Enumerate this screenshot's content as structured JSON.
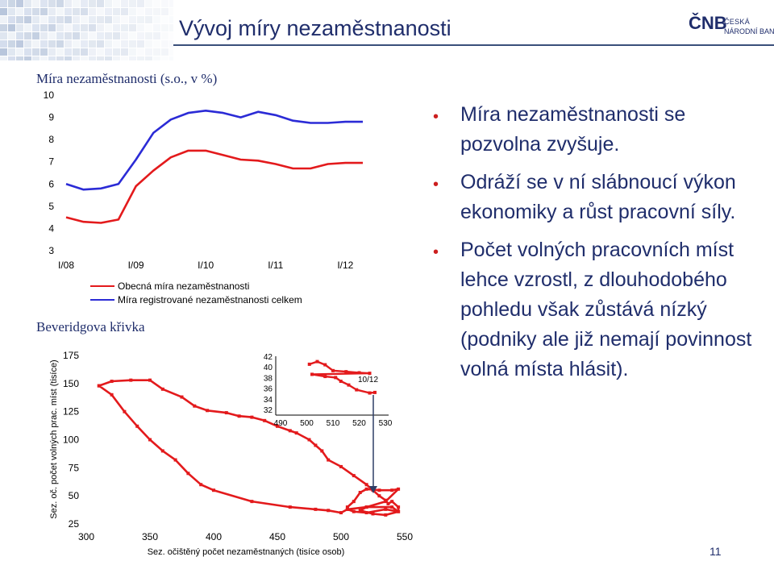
{
  "slide": {
    "title": "Vývoj míry nezaměstnanosti",
    "logo": {
      "mark": "ČNB",
      "line1": "ČESKÁ",
      "line2": "NÁRODNÍ BANKA"
    },
    "page_number": "11"
  },
  "section_titles": {
    "unemployment": "Míra nezaměstnanosti (s.o., v %)",
    "beveridge": "Beveridgova křivka"
  },
  "bullets": [
    "Míra nezaměstnanosti se pozvolna zvyšuje.",
    "Odráží se v ní slábnoucí výkon ekonomiky a růst pracovní síly.",
    "Počet volných pracovních míst lehce vzrostl, z dlouhodobého pohledu však zůstává nízký (podniky ale již nemají povinnost volná místa hlásit)."
  ],
  "colors": {
    "title": "#1f2d6b",
    "bullet_dot": "#cc1f1f",
    "series_general": "#e31a1c",
    "series_registered": "#2b2bd6",
    "beveridge": "#e31a1c",
    "arrow": "#2e3d66"
  },
  "chart_data": [
    {
      "type": "line",
      "title": "Míra nezaměstnanosti (s.o., v %)",
      "x": [
        "I/08",
        "II/08",
        "III/08",
        "IV/08",
        "I/09",
        "II/09",
        "III/09",
        "IV/09",
        "I/10",
        "II/10",
        "III/10",
        "IV/10",
        "I/11",
        "II/11",
        "III/11",
        "IV/11",
        "I/12",
        "II/12"
      ],
      "x_ticks": [
        "I/08",
        "I/09",
        "I/10",
        "I/11",
        "I/12"
      ],
      "ylim": [
        3,
        10
      ],
      "y_ticks": [
        "3",
        "4",
        "5",
        "6",
        "7",
        "8",
        "9",
        "10"
      ],
      "grid": false,
      "legend_position": "bottom",
      "series": [
        {
          "name": "Obecná míra nezaměstnanosti",
          "color": "#e31a1c",
          "values": [
            4.5,
            4.3,
            4.25,
            4.4,
            5.9,
            6.6,
            7.2,
            7.5,
            7.5,
            7.3,
            7.1,
            7.05,
            6.9,
            6.7,
            6.7,
            6.9,
            6.95,
            6.95
          ]
        },
        {
          "name": "Míra registrované nezaměstnanosti celkem",
          "color": "#2b2bd6",
          "values": [
            6.0,
            5.75,
            5.8,
            6.0,
            7.1,
            8.3,
            8.9,
            9.2,
            9.3,
            9.2,
            9.0,
            9.25,
            9.1,
            8.85,
            8.75,
            8.75,
            8.8,
            8.8
          ]
        }
      ]
    },
    {
      "type": "line",
      "title": "Beveridgova křivka",
      "xlabel": "Sez. očištěný počet nezaměstnaných (tisíce osob)",
      "ylabel": "Sez. oč. počet volných prac. míst (tisíce)",
      "xlim": [
        300,
        550
      ],
      "ylim": [
        25,
        175
      ],
      "x_ticks": [
        "300",
        "350",
        "400",
        "450",
        "500",
        "550"
      ],
      "y_ticks": [
        "25",
        "50",
        "75",
        "100",
        "125",
        "150",
        "175"
      ],
      "color": "#e31a1c",
      "points": [
        [
          310,
          148
        ],
        [
          320,
          152
        ],
        [
          335,
          153
        ],
        [
          350,
          153
        ],
        [
          360,
          145
        ],
        [
          375,
          138
        ],
        [
          385,
          130
        ],
        [
          395,
          126
        ],
        [
          410,
          124
        ],
        [
          420,
          121
        ],
        [
          430,
          120
        ],
        [
          440,
          117
        ],
        [
          450,
          112
        ],
        [
          460,
          108
        ],
        [
          465,
          106
        ],
        [
          475,
          100
        ],
        [
          480,
          95
        ],
        [
          485,
          90
        ],
        [
          490,
          82
        ],
        [
          500,
          76
        ],
        [
          510,
          68
        ],
        [
          520,
          60
        ],
        [
          525,
          55
        ],
        [
          530,
          50
        ],
        [
          535,
          46
        ],
        [
          537,
          43
        ],
        [
          540,
          45
        ],
        [
          545,
          40
        ],
        [
          545,
          36
        ],
        [
          535,
          38
        ],
        [
          520,
          35
        ],
        [
          510,
          36
        ],
        [
          505,
          38
        ],
        [
          505,
          40
        ],
        [
          510,
          45
        ],
        [
          515,
          53
        ],
        [
          520,
          56
        ],
        [
          530,
          55
        ],
        [
          540,
          55
        ],
        [
          545,
          56
        ],
        [
          535,
          45
        ],
        [
          520,
          40
        ],
        [
          515,
          37
        ],
        [
          525,
          34
        ],
        [
          535,
          33
        ],
        [
          545,
          36
        ],
        [
          540,
          40
        ],
        [
          520,
          40
        ],
        [
          505,
          38
        ],
        [
          500,
          35
        ],
        [
          490,
          37
        ],
        [
          480,
          38
        ],
        [
          460,
          40
        ],
        [
          430,
          45
        ],
        [
          400,
          55
        ],
        [
          390,
          60
        ],
        [
          380,
          70
        ],
        [
          370,
          82
        ],
        [
          360,
          90
        ],
        [
          350,
          100
        ],
        [
          340,
          112
        ],
        [
          330,
          125
        ],
        [
          320,
          140
        ],
        [
          310,
          148
        ]
      ],
      "inset": {
        "type": "line",
        "label": "10/12",
        "xlim": [
          490,
          530
        ],
        "ylim": [
          32,
          42
        ],
        "x_ticks": [
          "490",
          "500",
          "510",
          "520",
          "530"
        ],
        "y_ticks": [
          "32",
          "34",
          "36",
          "38",
          "40",
          "42"
        ],
        "color": "#e31a1c",
        "points": [
          [
            501,
            40.5
          ],
          [
            504,
            41
          ],
          [
            507,
            40.4
          ],
          [
            510,
            39.3
          ],
          [
            515,
            39.1
          ],
          [
            520,
            38.9
          ],
          [
            524,
            38.8
          ],
          [
            502,
            38.6
          ],
          [
            507,
            38.2
          ],
          [
            511,
            38
          ],
          [
            513,
            37.3
          ],
          [
            516,
            36.6
          ],
          [
            519,
            35.7
          ],
          [
            524,
            35.1
          ],
          [
            526,
            35.2
          ]
        ]
      }
    }
  ]
}
